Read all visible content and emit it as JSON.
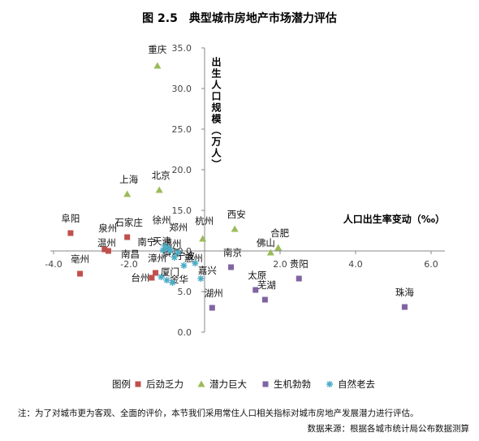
{
  "chart_data": {
    "type": "scatter",
    "title": "图 2.5　典型城市房地产市场潜力评估",
    "xlabel": "人口出生率变动（‰）",
    "ylabel": "出生人口规模（万人）",
    "xlim": [
      -4.0,
      6.0
    ],
    "ylim": [
      0.0,
      35.0
    ],
    "x_ticks": [
      "-4.0",
      "-2.0",
      "2.0",
      "4.0",
      "6.0"
    ],
    "y_ticks": [
      "0.0",
      "5.0",
      "10.0",
      "15.0",
      "20.0",
      "25.0",
      "30.0",
      "35.0"
    ],
    "grid": false,
    "legend_title": "图例",
    "legend_position": "bottom",
    "series": [
      {
        "name": "后劲乏力",
        "color": "#c0504d",
        "marker": "square",
        "points": [
          {
            "label": "阜阳",
            "x": -3.55,
            "y": 12.2
          },
          {
            "label": "亳州",
            "x": -3.3,
            "y": 7.2
          },
          {
            "label": "泉州",
            "x": -2.65,
            "y": 10.2
          },
          {
            "label": "温州",
            "x": -2.55,
            "y": 10.0
          },
          {
            "label": "石家庄",
            "x": -2.05,
            "y": 11.7
          },
          {
            "label": "台州",
            "x": -1.4,
            "y": 6.7
          },
          {
            "label": "漳州",
            "x": -1.3,
            "y": 7.3
          }
        ]
      },
      {
        "name": "潜力巨大",
        "color": "#9bbb59",
        "marker": "triangle",
        "points": [
          {
            "label": "重庆",
            "x": -1.25,
            "y": 32.8
          },
          {
            "label": "上海",
            "x": -2.05,
            "y": 17.0
          },
          {
            "label": "北京",
            "x": -1.2,
            "y": 17.5
          },
          {
            "label": "杭州",
            "x": -0.05,
            "y": 11.5
          },
          {
            "label": "西安",
            "x": 0.8,
            "y": 12.7
          },
          {
            "label": "合肥",
            "x": 1.95,
            "y": 10.4
          },
          {
            "label": "佛山",
            "x": 1.75,
            "y": 9.8
          }
        ]
      },
      {
        "name": "生机勃勃",
        "color": "#8064a2",
        "marker": "square",
        "points": [
          {
            "label": "南京",
            "x": 0.7,
            "y": 8.0
          },
          {
            "label": "贵阳",
            "x": 2.5,
            "y": 6.6
          },
          {
            "label": "太原",
            "x": 1.35,
            "y": 5.2
          },
          {
            "label": "芜湖",
            "x": 1.6,
            "y": 4.0
          },
          {
            "label": "湖州",
            "x": 0.2,
            "y": 3.0
          },
          {
            "label": "珠海",
            "x": 5.3,
            "y": 3.1
          }
        ]
      },
      {
        "name": "自然老去",
        "color": "#4bacc6",
        "marker": "asterisk",
        "points": [
          {
            "label": "徐州",
            "x": -1.05,
            "y": 10.6
          },
          {
            "label": "郑州",
            "x": -0.95,
            "y": 10.3
          },
          {
            "label": "南宁",
            "x": -1.1,
            "y": 10.1
          },
          {
            "label": "福州",
            "x": -0.9,
            "y": 10.0
          },
          {
            "label": "天津",
            "x": -0.7,
            "y": 9.8
          },
          {
            "label": "镇江",
            "x": -0.8,
            "y": 9.2
          },
          {
            "label": "宁波",
            "x": -0.55,
            "y": 8.2
          },
          {
            "label": "惠州",
            "x": -0.25,
            "y": 8.5
          },
          {
            "label": "南昌",
            "x": -1.15,
            "y": 6.8
          },
          {
            "label": "厦门",
            "x": -1.0,
            "y": 6.4
          },
          {
            "label": "金华",
            "x": -0.85,
            "y": 6.1
          },
          {
            "label": "嘉兴",
            "x": -0.1,
            "y": 6.6
          }
        ]
      }
    ]
  },
  "note": "注：为了对城市更为客观、全面的评价，本节我们采用常住人口相关指标对城市房地产发展潜力进行评估。",
  "source": "数据来源：根据各城市统计局公布数据测算"
}
